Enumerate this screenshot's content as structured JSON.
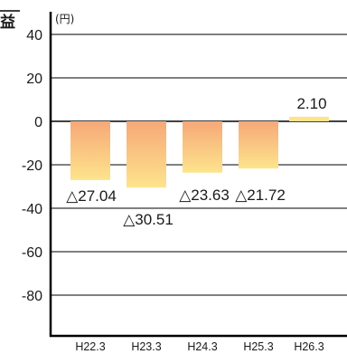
{
  "chart_data": {
    "type": "bar",
    "title": "益",
    "unit": "(円)",
    "categories": [
      "H22.3",
      "H23.3",
      "H24.3",
      "H25.3",
      "H26.3"
    ],
    "values": [
      -27.04,
      -30.51,
      -23.63,
      -21.72,
      2.1
    ],
    "data_labels": [
      "△27.04",
      "△30.51",
      "△23.63",
      "△21.72",
      "2.10"
    ],
    "ylim": [
      -91,
      44
    ],
    "yticks": [
      40,
      20,
      0,
      -20,
      -40,
      -60,
      -80
    ],
    "ytick_labels": [
      "40",
      "20",
      "0",
      "-20",
      "-40",
      "-60",
      "-80"
    ],
    "grid": true,
    "colors": {
      "bar_top": "#f6a878",
      "bar_bottom": "#fde48c",
      "bar_positive": "#fde48c",
      "axis": "#000000",
      "grid": "#000000"
    }
  }
}
